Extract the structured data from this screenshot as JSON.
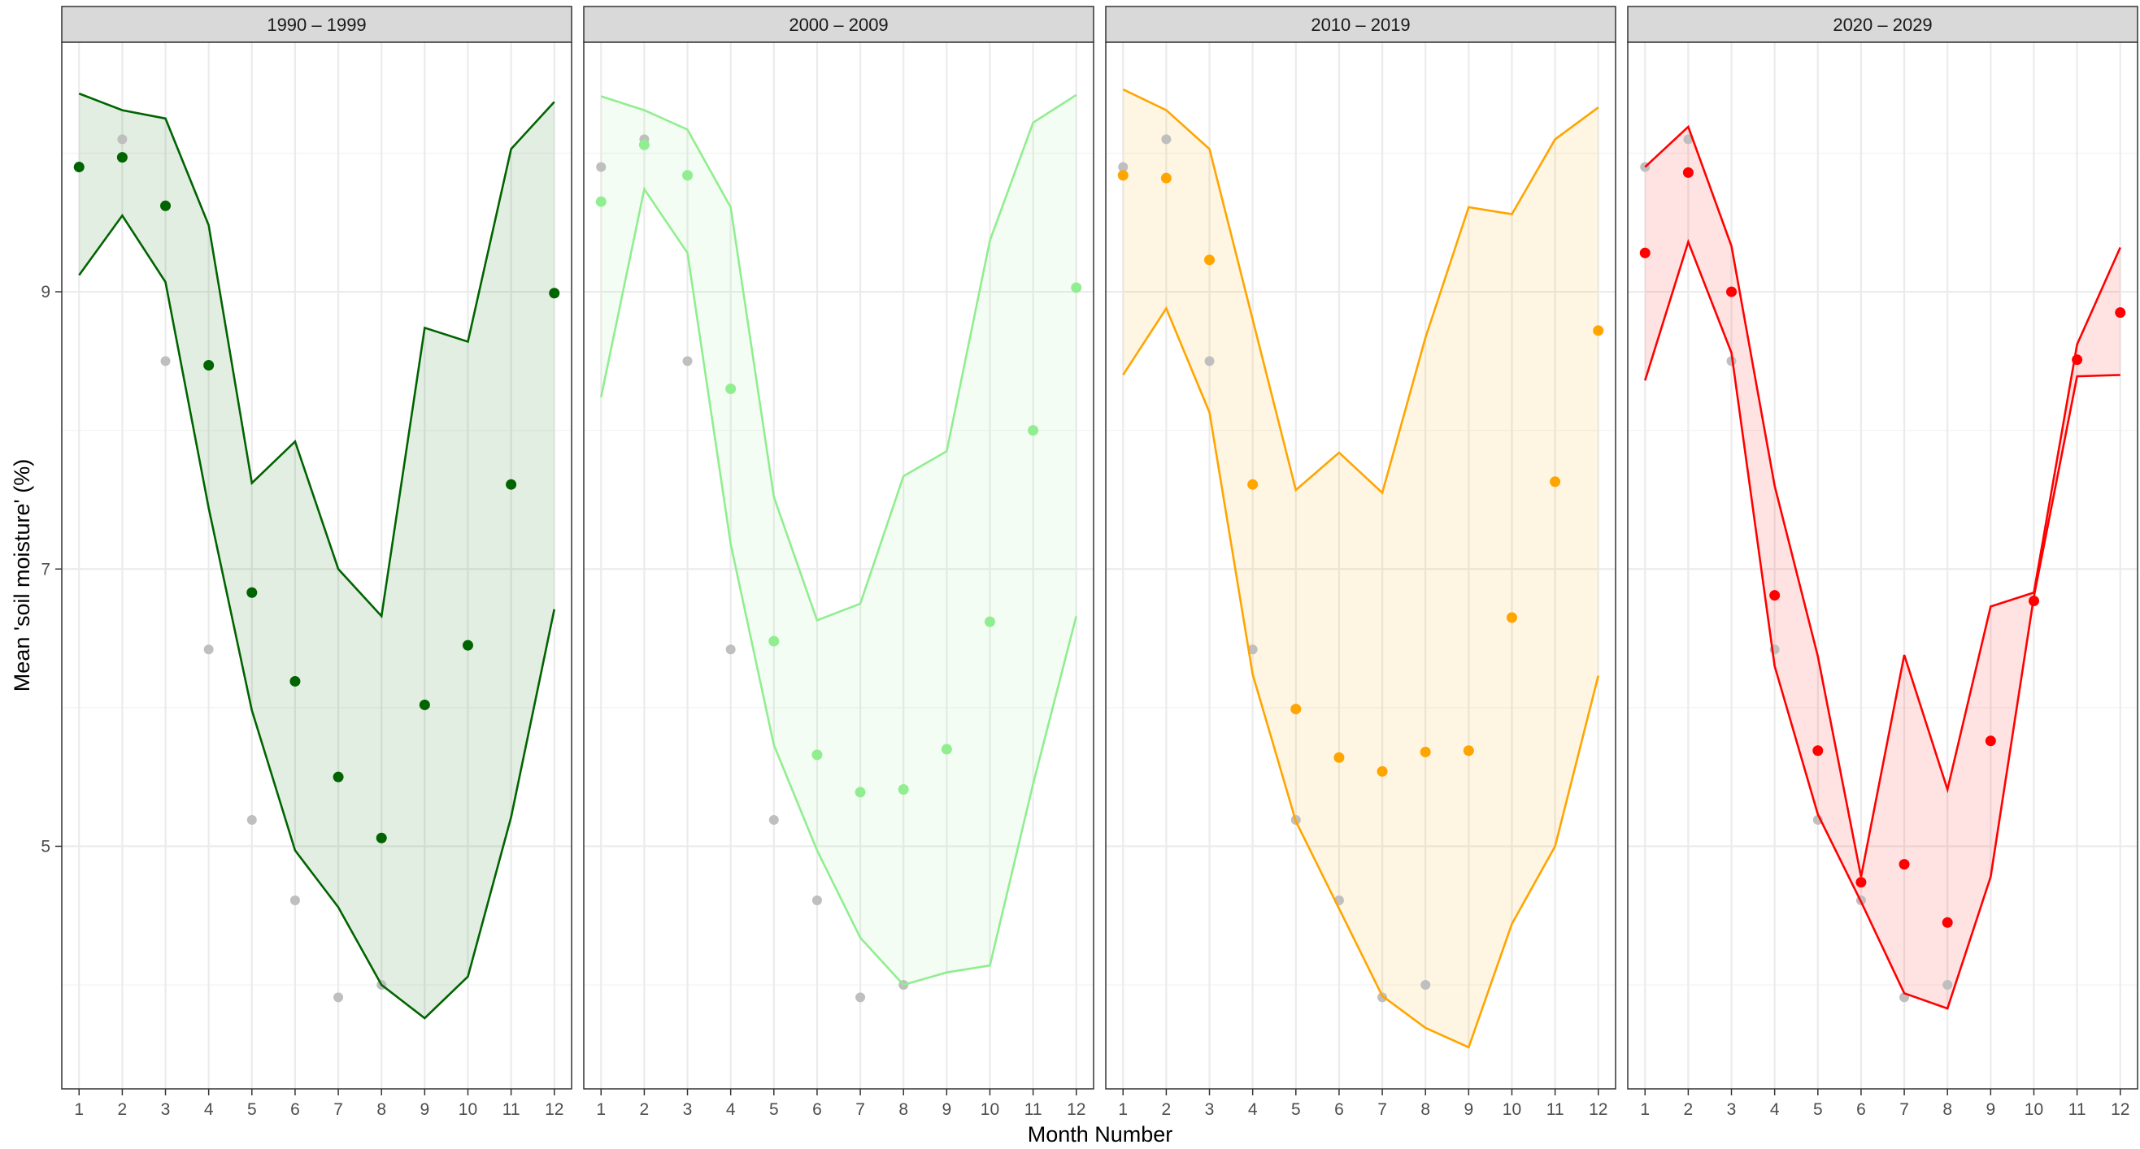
{
  "chart_data": {
    "type": "line",
    "xlabel": "Month Number",
    "ylabel": "Mean 'soil moisture' (%)",
    "xlim": [
      0.6,
      12.4
    ],
    "ylim": [
      3.25,
      10.8
    ],
    "x_ticks": [
      1,
      2,
      3,
      4,
      5,
      6,
      7,
      8,
      9,
      10,
      11,
      12
    ],
    "y_ticks": [
      5,
      7,
      9
    ],
    "y_minor_gridlines": [
      4,
      6,
      8,
      10
    ],
    "grid": true,
    "reference_points_color": "#bfbfbf",
    "reference_points": [
      9.9,
      10.1,
      8.5,
      6.42,
      5.19,
      4.61,
      3.91,
      4.0,
      null,
      null,
      null,
      null
    ],
    "panels": [
      {
        "label": "1990 – 1999",
        "color": "#006400",
        "band_fill": "#006400",
        "upper": [
          10.43,
          10.31,
          10.25,
          9.48,
          7.62,
          7.92,
          7.0,
          6.66,
          8.74,
          8.64,
          10.03,
          10.37
        ],
        "lower": [
          9.12,
          9.55,
          9.07,
          7.44,
          5.98,
          4.97,
          4.56,
          4.0,
          3.76,
          4.06,
          5.21,
          6.71
        ],
        "means": [
          9.9,
          9.97,
          9.62,
          8.47,
          6.83,
          6.19,
          5.5,
          5.06,
          6.02,
          6.45,
          7.61,
          8.99
        ]
      },
      {
        "label": "2000 – 2009",
        "color": "#90ee90",
        "band_fill": "#90ee90",
        "upper": [
          10.41,
          10.31,
          10.17,
          9.61,
          7.52,
          6.63,
          6.75,
          7.67,
          7.85,
          9.37,
          10.22,
          10.42
        ],
        "lower": [
          8.24,
          9.74,
          9.28,
          7.18,
          5.73,
          4.97,
          4.34,
          4.0,
          4.09,
          4.14,
          5.45,
          6.66
        ],
        "means": [
          9.65,
          10.06,
          9.84,
          8.3,
          6.48,
          5.66,
          5.39,
          5.41,
          5.7,
          6.62,
          8.0,
          9.03
        ]
      },
      {
        "label": "2010 – 2019",
        "color": "#ffa500",
        "band_fill": "#ffa500",
        "upper": [
          10.46,
          10.31,
          10.03,
          8.8,
          7.57,
          7.84,
          7.55,
          8.67,
          9.61,
          9.56,
          10.1,
          10.33
        ],
        "lower": [
          8.4,
          8.88,
          8.13,
          6.24,
          5.18,
          4.55,
          3.92,
          3.69,
          3.55,
          4.44,
          5.0,
          6.23
        ],
        "means": [
          9.84,
          9.82,
          9.23,
          7.61,
          5.99,
          5.64,
          5.54,
          5.68,
          5.69,
          6.65,
          7.63,
          8.72
        ]
      },
      {
        "label": "2020 – 2029",
        "color": "#ff0000",
        "band_fill": "#ff0000",
        "upper": [
          9.9,
          10.19,
          9.33,
          7.6,
          6.37,
          4.78,
          6.38,
          5.41,
          6.73,
          6.83,
          8.62,
          9.32
        ],
        "lower": [
          8.36,
          9.36,
          8.56,
          6.3,
          5.23,
          4.6,
          3.94,
          3.83,
          4.78,
          6.8,
          8.39,
          8.4
        ],
        "means": [
          9.28,
          9.86,
          9.0,
          6.81,
          5.69,
          4.74,
          4.87,
          4.45,
          5.76,
          6.77,
          8.51,
          8.85
        ]
      }
    ]
  }
}
